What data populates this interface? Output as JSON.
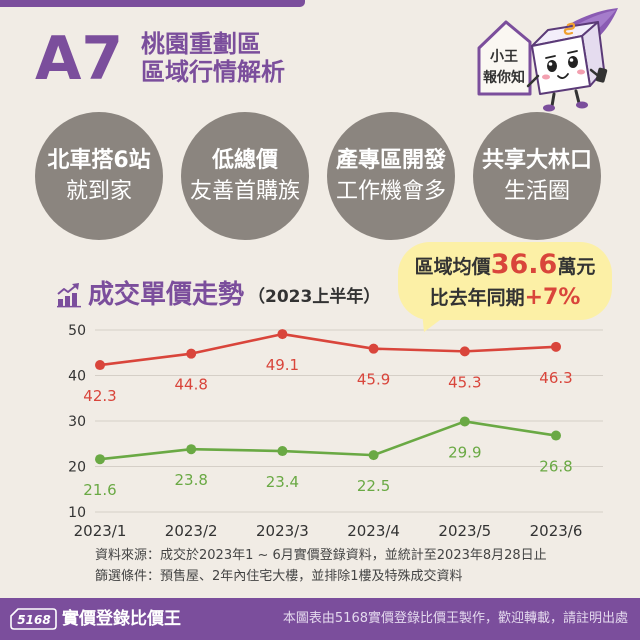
{
  "header": {
    "code": "A7",
    "title_line1": "桃園重劃區",
    "title_line2": "區域行情解析"
  },
  "mascot": {
    "icon": "box-character-mascot-icon",
    "sign_icon": "house-sign-icon",
    "sign_line1": "小王",
    "sign_line2": "報你知"
  },
  "highlights": [
    {
      "line1": "北車搭6站",
      "line2": "就到家"
    },
    {
      "line1": "低總價",
      "line2": "友善首購族"
    },
    {
      "line1": "產專區開發",
      "line2": "工作機會多"
    },
    {
      "line1": "共享大林口",
      "line2": "生活圈"
    }
  ],
  "section": {
    "icon": "rising-bar-chart-icon"
  },
  "callout": {
    "avg_prefix": "區域均價",
    "avg_value": "36.6",
    "avg_unit": "萬元",
    "yoy_prefix": "比去年同期",
    "yoy_value": "+7%"
  },
  "chart_data": {
    "type": "line",
    "title": "成交單價走勢",
    "subtitle": "（2023上半年）",
    "x": [
      "2023/1",
      "2023/2",
      "2023/3",
      "2023/4",
      "2023/5",
      "2023/6"
    ],
    "series": [
      {
        "values": [
          42.3,
          44.8,
          49.1,
          45.9,
          45.3,
          46.3
        ],
        "color": "#d9453b"
      },
      {
        "values": [
          21.6,
          23.8,
          23.4,
          22.5,
          29.9,
          26.8
        ],
        "color": "#6aa944"
      }
    ],
    "yticks": [
      50,
      40,
      30,
      20,
      10
    ],
    "ylim": [
      10,
      50
    ],
    "grid": true,
    "legend": "none",
    "markers": "circle",
    "data_labels": true
  },
  "notes": {
    "source": "資料來源：成交於2023年1 ~ 6月實價登錄資料，並統計至2023年8月28日止",
    "filter": "篩選條件：預售屋、2年內住宅大樓，並排除1樓及特殊成交資料"
  },
  "footer": {
    "logo_icon": "house-logo-icon",
    "logo_text": "5168",
    "brand": "實價登錄比價王",
    "credit": "本圖表由5168實價登錄比價王製作，歡迎轉載，請註明出處"
  },
  "colors": {
    "background": "#f1ece5",
    "brand_purple": "#7b4e9c",
    "circle_gray": "#8b857f",
    "callout_yellow": "#fcf0a6",
    "emphasis_red": "#d9453b",
    "text_dark": "#333333"
  }
}
